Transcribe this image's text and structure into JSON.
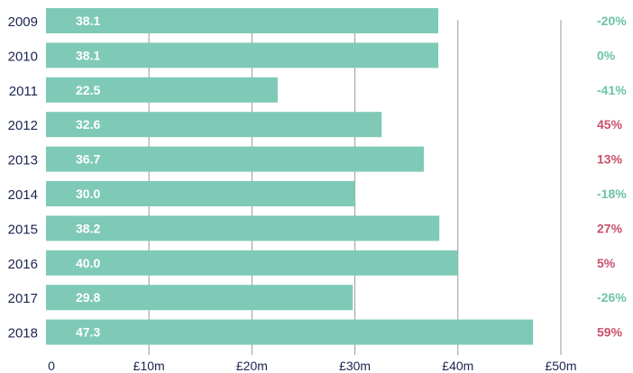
{
  "colors": {
    "bar": "#7ecab6",
    "gridline": "#9a9a9a",
    "axis_text": "#1b2550",
    "value_text": "#ffffff",
    "change_negative": "#6cc3a5",
    "change_positive": "#c8506a",
    "change_neutral": "#6cc3a5"
  },
  "chart_data": {
    "type": "bar",
    "orientation": "horizontal",
    "categories": [
      "2009",
      "2010",
      "2011",
      "2012",
      "2013",
      "2014",
      "2015",
      "2016",
      "2017",
      "2018"
    ],
    "values": [
      38.1,
      38.1,
      22.5,
      32.6,
      36.7,
      30.0,
      38.2,
      40.0,
      29.8,
      47.3
    ],
    "value_labels": [
      "38.1",
      "38.1",
      "22.5",
      "32.6",
      "36.7",
      "30.0",
      "38.2",
      "40.0",
      "29.8",
      "47.3"
    ],
    "change_labels": [
      "-20%",
      "0%",
      "-41%",
      "45%",
      "13%",
      "-18%",
      "27%",
      "5%",
      "-26%",
      "59%"
    ],
    "change_direction": [
      "negative",
      "neutral",
      "negative",
      "positive",
      "positive",
      "negative",
      "positive",
      "positive",
      "negative",
      "positive"
    ],
    "xlim": [
      0,
      50
    ],
    "xticks": [
      0,
      10,
      20,
      30,
      40,
      50
    ],
    "xtick_labels": [
      "0",
      "£10m",
      "£20m",
      "£30m",
      "£40m",
      "£50m"
    ],
    "title": "",
    "xlabel": "",
    "ylabel": "",
    "grid": true
  }
}
